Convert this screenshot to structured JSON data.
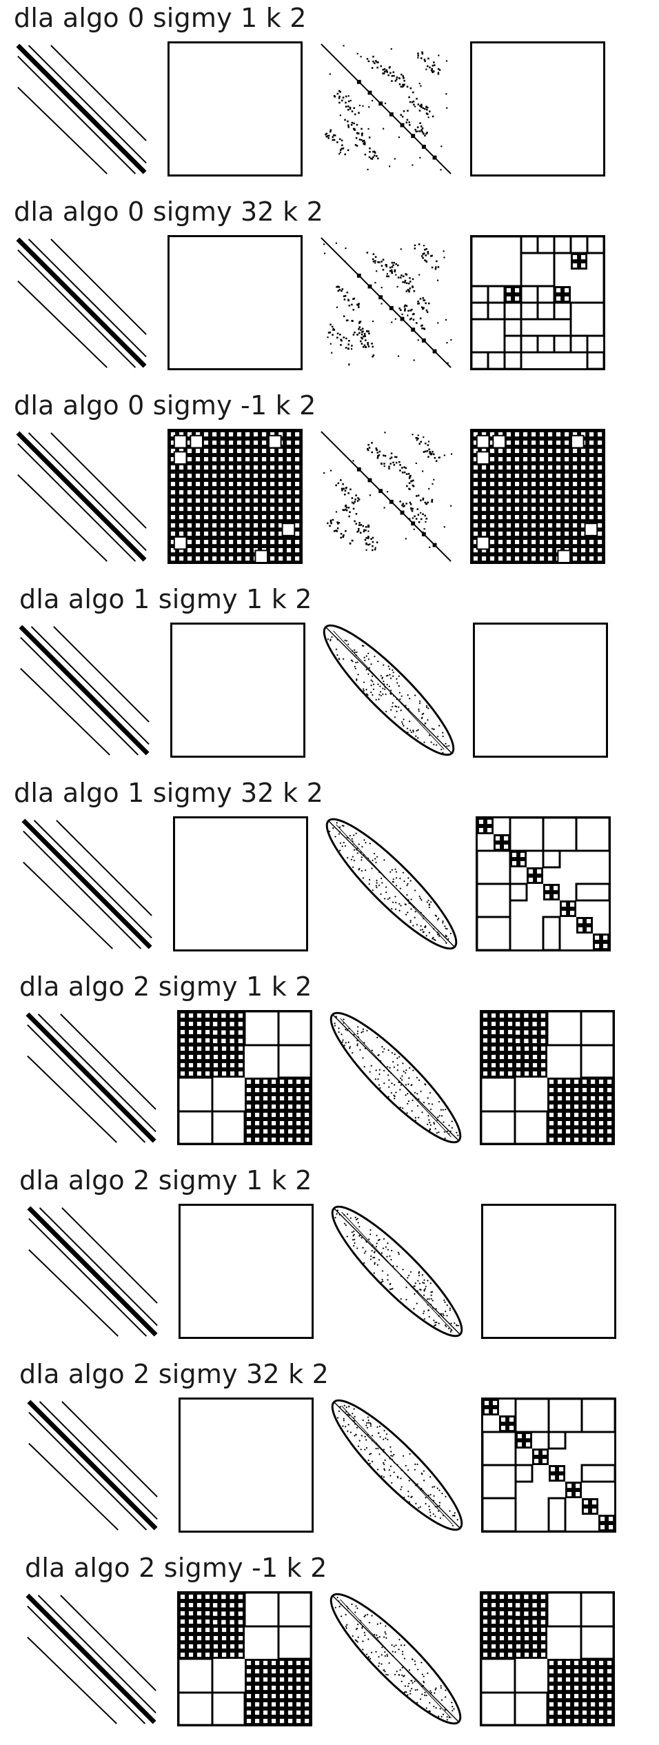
{
  "colors": {
    "ink": "#000000",
    "background": "#ffffff",
    "text": "#1a1a1a"
  },
  "rows": [
    {
      "title": "dla algo 0 sigmy 1 k 2",
      "pattern": "scatter",
      "partition_a": "empty",
      "partition_b": "empty"
    },
    {
      "title": "dla algo 0 sigmy 32 k 2",
      "pattern": "scatter",
      "partition_a": "empty",
      "partition_b": "blocks-mixed"
    },
    {
      "title": "dla algo 0 sigmy -1 k 2",
      "pattern": "scatter",
      "partition_a": "dense-grid",
      "partition_b": "dense-grid"
    },
    {
      "title": "dla algo 1 sigmy 1 k 2",
      "pattern": "ellipse",
      "partition_a": "empty",
      "partition_b": "empty"
    },
    {
      "title": "dla algo 1 sigmy 32 k 2",
      "pattern": "ellipse",
      "partition_a": "empty",
      "partition_b": "blocks-diagonal"
    },
    {
      "title": "dla algo 2 sigmy 1 k 2",
      "pattern": "ellipse",
      "partition_a": "hierarchical",
      "partition_b": "hierarchical"
    },
    {
      "title": "dla algo 2 sigmy 1 k 2",
      "pattern": "ellipse",
      "partition_a": "empty",
      "partition_b": "empty"
    },
    {
      "title": "dla algo 2 sigmy 32 k 2",
      "pattern": "ellipse",
      "partition_a": "empty",
      "partition_b": "blocks-diagonal"
    },
    {
      "title": "dla algo 2 sigmy -1 k 2",
      "pattern": "ellipse",
      "partition_a": "hierarchical",
      "partition_b": "hierarchical"
    }
  ]
}
